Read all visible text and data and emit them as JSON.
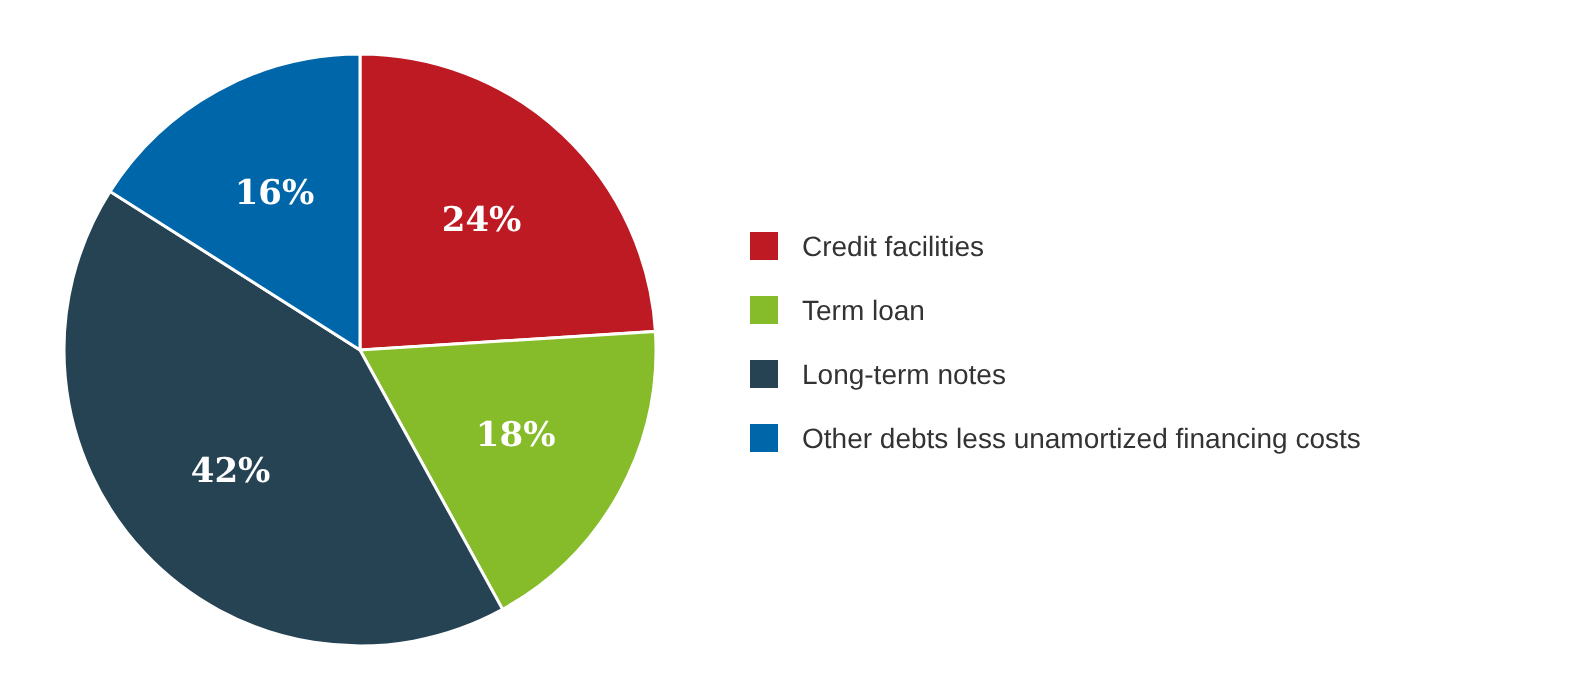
{
  "chart_data": {
    "type": "pie",
    "categories": [
      "Credit facilities",
      "Term loan",
      "Long-term notes",
      "Other debts less unamortized financing costs"
    ],
    "values": [
      24,
      18,
      42,
      16
    ],
    "value_labels": [
      "24%",
      "18%",
      "42%",
      "16%"
    ],
    "colors": [
      "#be1a24",
      "#86bb2a",
      "#264354",
      "#0066aa"
    ],
    "legend": "right"
  }
}
